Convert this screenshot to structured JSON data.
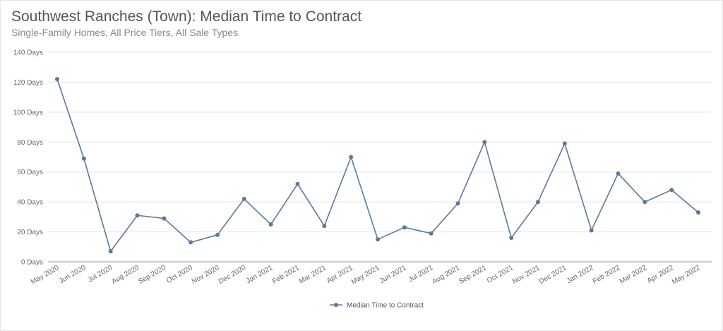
{
  "chart_data": {
    "type": "line",
    "title": "Southwest Ranches (Town): Median Time to Contract",
    "subtitle": "Single-Family Homes, All Price Tiers, All Sale Types",
    "categories": [
      "May 2020",
      "Jun 2020",
      "Jul 2020",
      "Aug 2020",
      "Sep 2020",
      "Oct 2020",
      "Nov 2020",
      "Dec 2020",
      "Jan 2021",
      "Feb 2021",
      "Mar 2021",
      "Apr 2021",
      "May 2021",
      "Jun 2021",
      "Jul 2021",
      "Aug 2021",
      "Sep 2021",
      "Oct 2021",
      "Nov 2021",
      "Dec 2021",
      "Jan 2022",
      "Feb 2022",
      "Mar 2022",
      "Apr 2022",
      "May 2022"
    ],
    "series": [
      {
        "name": "Median Time to Contract",
        "values": [
          122,
          69,
          7,
          31,
          29,
          13,
          18,
          42,
          25,
          52,
          24,
          70,
          15,
          23,
          19,
          39,
          80,
          16,
          40,
          79,
          21,
          59,
          40,
          48,
          33
        ]
      }
    ],
    "y_ticks": [
      "0 Days",
      "20 Days",
      "40 Days",
      "60 Days",
      "80 Days",
      "100 Days",
      "120 Days",
      "140 Days"
    ],
    "ylim": [
      0,
      140
    ],
    "grid": true,
    "legend": "bottom-center",
    "line_color": "#5a7a99"
  }
}
